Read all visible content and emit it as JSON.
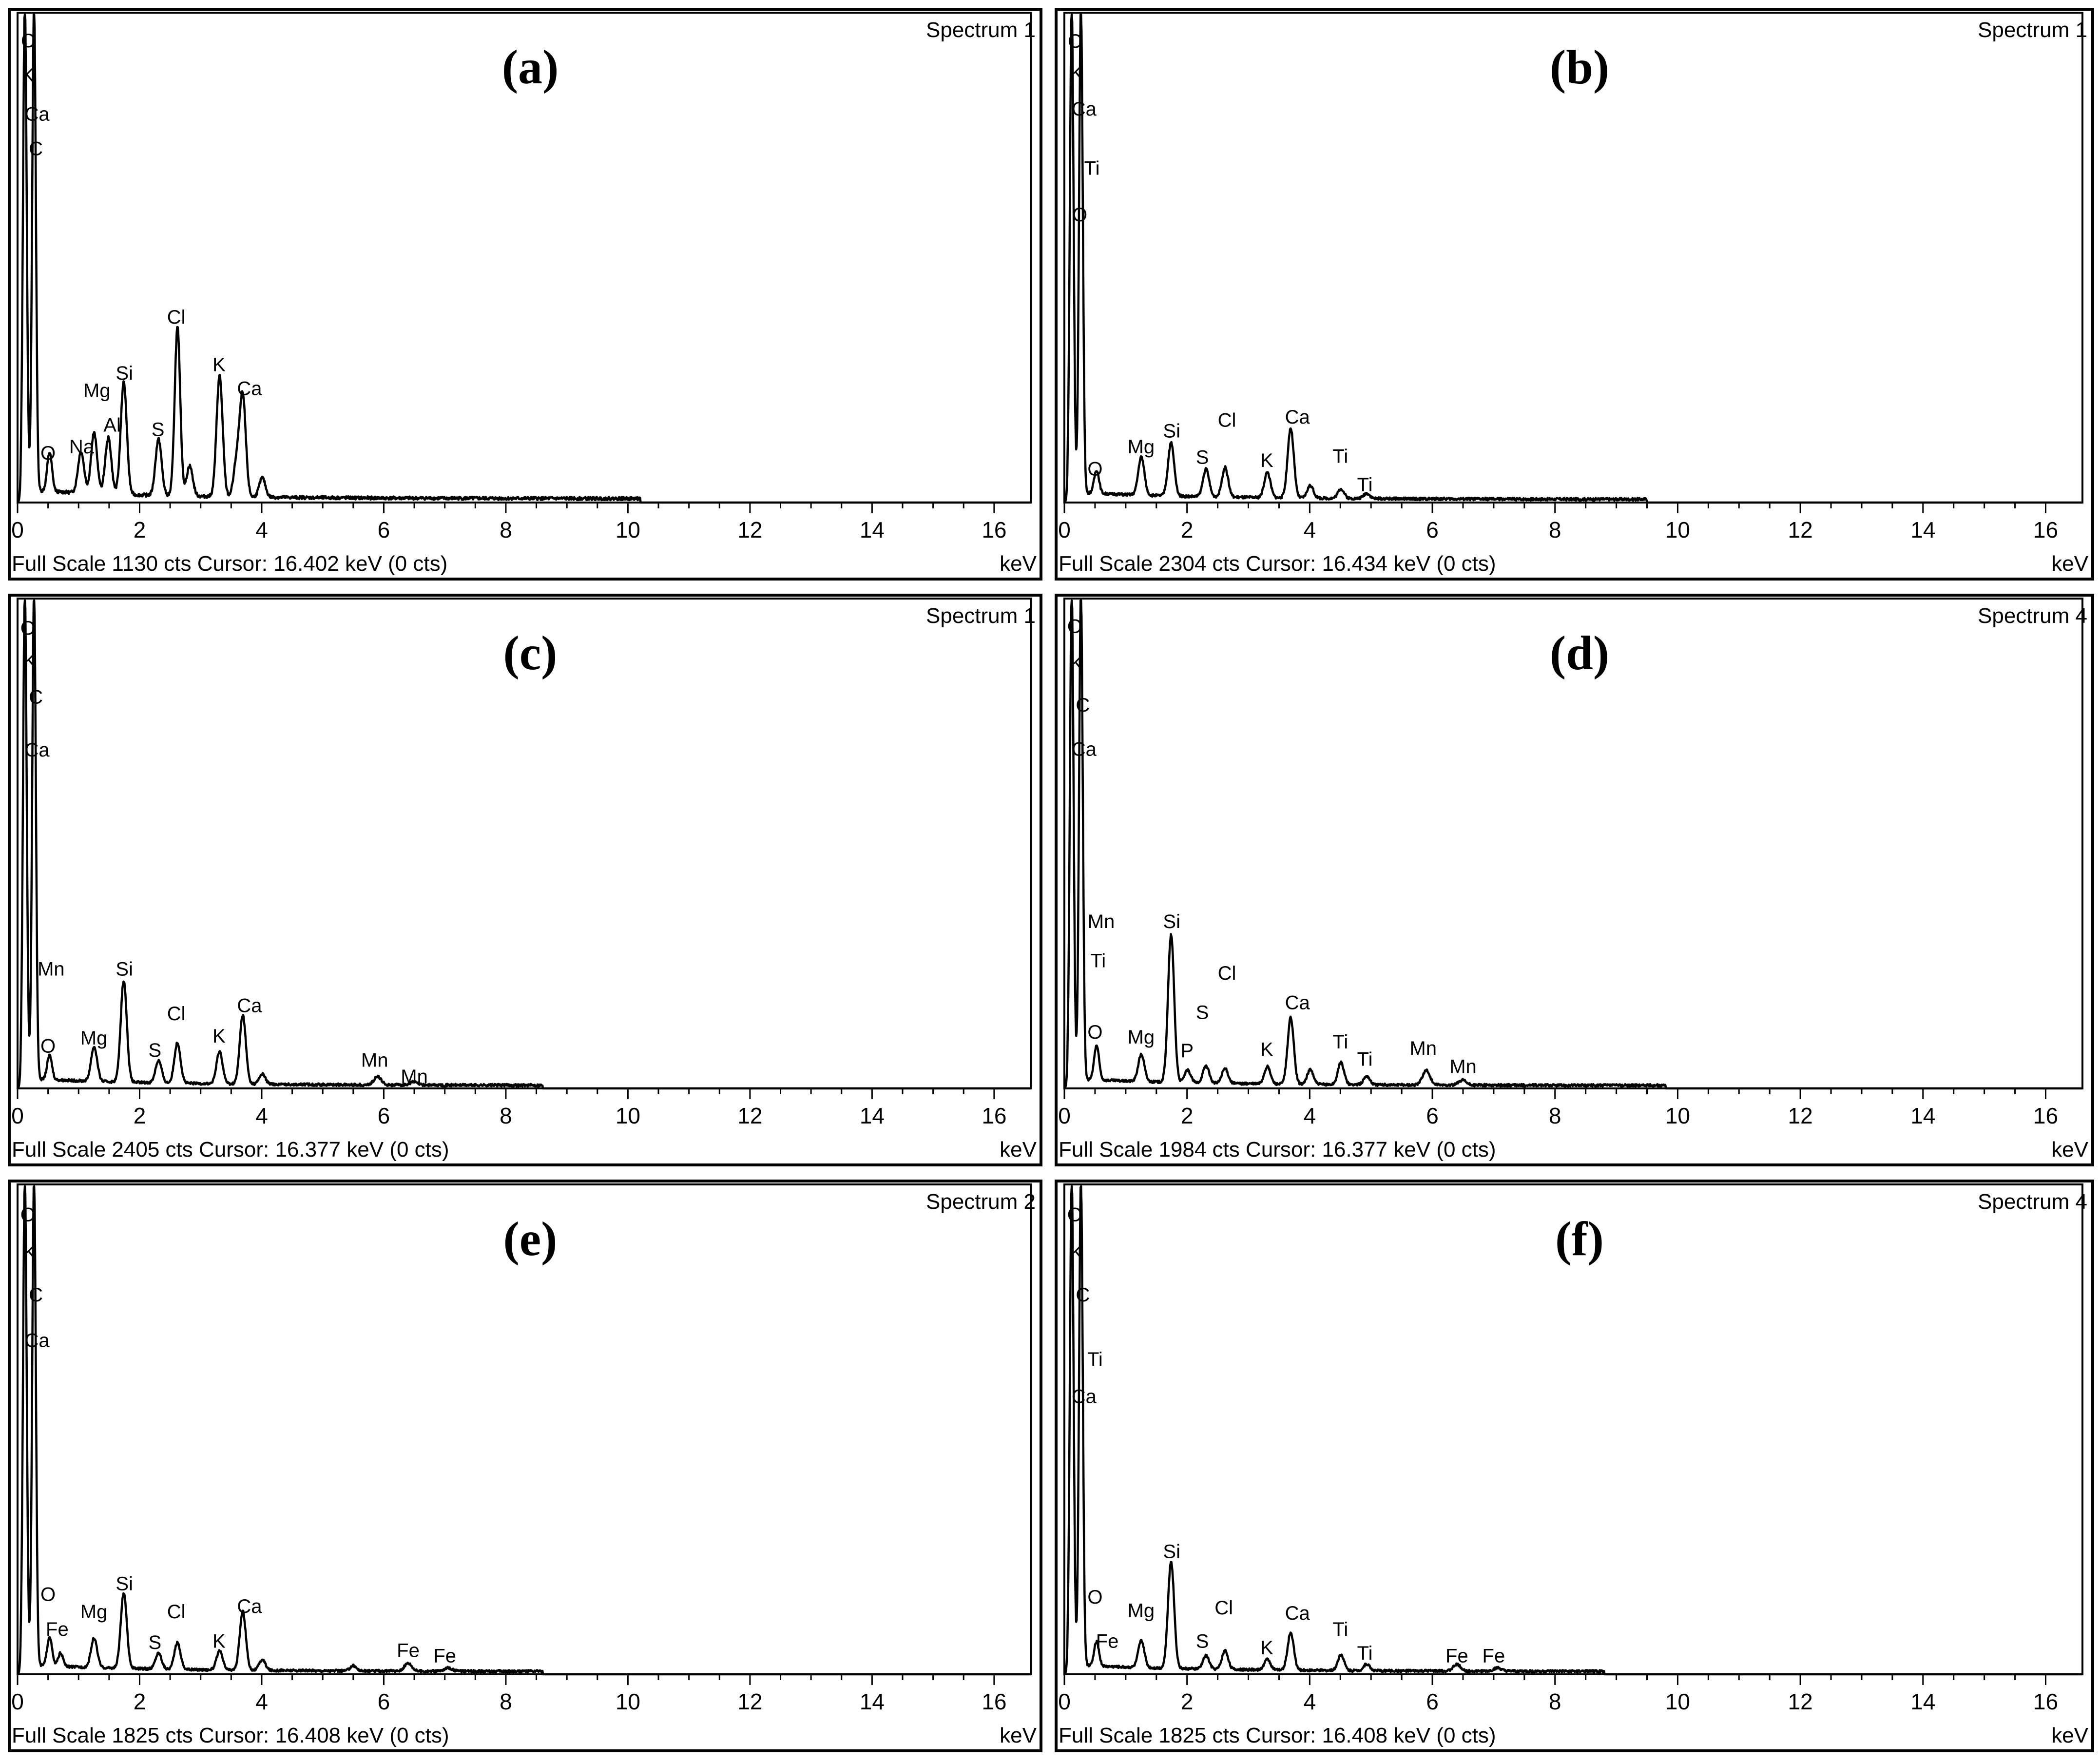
{
  "chart_data": [
    {
      "type": "line",
      "panel_label": "(a)",
      "spectrum_name": "Spectrum 1",
      "xlabel": "keV",
      "xlim": [
        0,
        16.6
      ],
      "xticks": [
        "0",
        "2",
        "4",
        "6",
        "8",
        "10",
        "12",
        "14",
        "16"
      ],
      "full_scale": "Full Scale 1130 cts",
      "cursor": "Cursor: 16.402 keV (0 cts)",
      "ymax": 1130,
      "baseline": 15,
      "noise_until": 10.2,
      "peaks": [
        {
          "x": 0.12,
          "y": 1130,
          "w": 0.03
        },
        {
          "x": 0.27,
          "y": 1130,
          "w": 0.03
        },
        {
          "x": 0.525,
          "y": 90,
          "w": 0.04
        },
        {
          "x": 1.04,
          "y": 95,
          "w": 0.05
        },
        {
          "x": 1.254,
          "y": 140,
          "w": 0.05
        },
        {
          "x": 1.487,
          "y": 130,
          "w": 0.05
        },
        {
          "x": 1.74,
          "y": 260,
          "w": 0.05
        },
        {
          "x": 2.31,
          "y": 130,
          "w": 0.05
        },
        {
          "x": 2.62,
          "y": 390,
          "w": 0.045
        },
        {
          "x": 2.82,
          "y": 70,
          "w": 0.05
        },
        {
          "x": 3.31,
          "y": 280,
          "w": 0.05
        },
        {
          "x": 3.59,
          "y": 80,
          "w": 0.05
        },
        {
          "x": 3.69,
          "y": 230,
          "w": 0.05
        },
        {
          "x": 4.01,
          "y": 45,
          "w": 0.05
        }
      ],
      "labels": [
        {
          "text": "C",
          "x": 0.17,
          "y": 1070
        },
        {
          "text": "K",
          "x": 0.17,
          "y": 990
        },
        {
          "text": "Ca",
          "x": 0.32,
          "y": 900
        },
        {
          "text": "C",
          "x": 0.3,
          "y": 820
        },
        {
          "text": "O",
          "x": 0.5,
          "y": 115
        },
        {
          "text": "Na",
          "x": 1.05,
          "y": 130
        },
        {
          "text": "Al",
          "x": 1.55,
          "y": 180
        },
        {
          "text": "Mg",
          "x": 1.3,
          "y": 260
        },
        {
          "text": "Si",
          "x": 1.75,
          "y": 300
        },
        {
          "text": "S",
          "x": 2.3,
          "y": 170
        },
        {
          "text": "Cl",
          "x": 2.6,
          "y": 430
        },
        {
          "text": "K",
          "x": 3.3,
          "y": 320
        },
        {
          "text": "Ca",
          "x": 3.8,
          "y": 265
        }
      ]
    },
    {
      "type": "line",
      "panel_label": "(b)",
      "spectrum_name": "Spectrum 1",
      "xlabel": "keV",
      "xlim": [
        0,
        16.6
      ],
      "xticks": [
        "0",
        "2",
        "4",
        "6",
        "8",
        "10",
        "12",
        "14",
        "16"
      ],
      "full_scale": "Full Scale 2304 cts",
      "cursor": "Cursor: 16.434 keV (0 cts)",
      "ymax": 2304,
      "baseline": 25,
      "noise_until": 9.5,
      "peaks": [
        {
          "x": 0.12,
          "y": 2304,
          "w": 0.03
        },
        {
          "x": 0.27,
          "y": 2304,
          "w": 0.03
        },
        {
          "x": 0.525,
          "y": 110,
          "w": 0.04
        },
        {
          "x": 1.254,
          "y": 180,
          "w": 0.05
        },
        {
          "x": 1.74,
          "y": 250,
          "w": 0.05
        },
        {
          "x": 2.31,
          "y": 130,
          "w": 0.05
        },
        {
          "x": 2.62,
          "y": 140,
          "w": 0.05
        },
        {
          "x": 3.31,
          "y": 120,
          "w": 0.05
        },
        {
          "x": 3.69,
          "y": 330,
          "w": 0.05
        },
        {
          "x": 4.01,
          "y": 60,
          "w": 0.05
        },
        {
          "x": 4.51,
          "y": 45,
          "w": 0.05
        },
        {
          "x": 4.93,
          "y": 25,
          "w": 0.05
        }
      ],
      "labels": [
        {
          "text": "C",
          "x": 0.17,
          "y": 2180
        },
        {
          "text": "K",
          "x": 0.2,
          "y": 2030
        },
        {
          "text": "Ca",
          "x": 0.32,
          "y": 1860
        },
        {
          "text": "Ti",
          "x": 0.45,
          "y": 1580
        },
        {
          "text": "O",
          "x": 0.25,
          "y": 1360
        },
        {
          "text": "O",
          "x": 0.5,
          "y": 160
        },
        {
          "text": "Mg",
          "x": 1.25,
          "y": 265
        },
        {
          "text": "Si",
          "x": 1.75,
          "y": 340
        },
        {
          "text": "S",
          "x": 2.25,
          "y": 215
        },
        {
          "text": "Cl",
          "x": 2.65,
          "y": 390
        },
        {
          "text": "K",
          "x": 3.3,
          "y": 200
        },
        {
          "text": "Ca",
          "x": 3.8,
          "y": 405
        },
        {
          "text": "Ti",
          "x": 4.5,
          "y": 220
        },
        {
          "text": "Ti",
          "x": 4.9,
          "y": 85
        }
      ]
    },
    {
      "type": "line",
      "panel_label": "(c)",
      "spectrum_name": "Spectrum 1",
      "xlabel": "keV",
      "xlim": [
        0,
        16.6
      ],
      "xticks": [
        "0",
        "2",
        "4",
        "6",
        "8",
        "10",
        "12",
        "14",
        "16"
      ],
      "full_scale": "Full Scale 2405 cts",
      "cursor": "Cursor: 16.377 keV (0 cts)",
      "ymax": 2405,
      "baseline": 25,
      "noise_until": 8.6,
      "peaks": [
        {
          "x": 0.12,
          "y": 2405,
          "w": 0.03
        },
        {
          "x": 0.27,
          "y": 2405,
          "w": 0.03
        },
        {
          "x": 0.525,
          "y": 120,
          "w": 0.04
        },
        {
          "x": 1.254,
          "y": 170,
          "w": 0.05
        },
        {
          "x": 1.74,
          "y": 500,
          "w": 0.05
        },
        {
          "x": 2.31,
          "y": 110,
          "w": 0.05
        },
        {
          "x": 2.62,
          "y": 200,
          "w": 0.05
        },
        {
          "x": 3.31,
          "y": 160,
          "w": 0.05
        },
        {
          "x": 3.69,
          "y": 340,
          "w": 0.05
        },
        {
          "x": 4.01,
          "y": 50,
          "w": 0.05
        },
        {
          "x": 5.9,
          "y": 40,
          "w": 0.06
        },
        {
          "x": 6.49,
          "y": 15,
          "w": 0.06
        }
      ],
      "labels": [
        {
          "text": "O",
          "x": 0.17,
          "y": 2270
        },
        {
          "text": "K",
          "x": 0.2,
          "y": 2110
        },
        {
          "text": "C",
          "x": 0.3,
          "y": 1930
        },
        {
          "text": "Ca",
          "x": 0.32,
          "y": 1670
        },
        {
          "text": "Mn",
          "x": 0.55,
          "y": 590
        },
        {
          "text": "O",
          "x": 0.5,
          "y": 210
        },
        {
          "text": "Mg",
          "x": 1.25,
          "y": 250
        },
        {
          "text": "Si",
          "x": 1.75,
          "y": 590
        },
        {
          "text": "S",
          "x": 2.25,
          "y": 190
        },
        {
          "text": "Cl",
          "x": 2.6,
          "y": 370
        },
        {
          "text": "K",
          "x": 3.3,
          "y": 260
        },
        {
          "text": "Ca",
          "x": 3.8,
          "y": 410
        },
        {
          "text": "Mn",
          "x": 5.85,
          "y": 140
        },
        {
          "text": "Mn",
          "x": 6.5,
          "y": 60
        }
      ]
    },
    {
      "type": "line",
      "panel_label": "(d)",
      "spectrum_name": "Spectrum 4",
      "xlabel": "keV",
      "xlim": [
        0,
        16.6
      ],
      "xticks": [
        "0",
        "2",
        "4",
        "6",
        "8",
        "10",
        "12",
        "14",
        "16"
      ],
      "full_scale": "Full Scale 1984 cts",
      "cursor": "Cursor: 16.377 keV (0 cts)",
      "ymax": 1984,
      "baseline": 20,
      "noise_until": 9.8,
      "peaks": [
        {
          "x": 0.12,
          "y": 1984,
          "w": 0.03
        },
        {
          "x": 0.27,
          "y": 1984,
          "w": 0.03
        },
        {
          "x": 0.525,
          "y": 140,
          "w": 0.04
        },
        {
          "x": 1.254,
          "y": 110,
          "w": 0.05
        },
        {
          "x": 1.74,
          "y": 600,
          "w": 0.05
        },
        {
          "x": 2.01,
          "y": 50,
          "w": 0.05
        },
        {
          "x": 2.31,
          "y": 70,
          "w": 0.05
        },
        {
          "x": 2.62,
          "y": 60,
          "w": 0.05
        },
        {
          "x": 3.31,
          "y": 70,
          "w": 0.05
        },
        {
          "x": 3.69,
          "y": 270,
          "w": 0.05
        },
        {
          "x": 4.01,
          "y": 60,
          "w": 0.05
        },
        {
          "x": 4.51,
          "y": 90,
          "w": 0.05
        },
        {
          "x": 4.93,
          "y": 35,
          "w": 0.05
        },
        {
          "x": 5.9,
          "y": 60,
          "w": 0.06
        },
        {
          "x": 6.49,
          "y": 20,
          "w": 0.06
        }
      ],
      "labels": [
        {
          "text": "O",
          "x": 0.17,
          "y": 1880
        },
        {
          "text": "K",
          "x": 0.2,
          "y": 1730
        },
        {
          "text": "C",
          "x": 0.3,
          "y": 1560
        },
        {
          "text": "Ca",
          "x": 0.32,
          "y": 1380
        },
        {
          "text": "Mn",
          "x": 0.6,
          "y": 680
        },
        {
          "text": "Ti",
          "x": 0.55,
          "y": 520
        },
        {
          "text": "O",
          "x": 0.5,
          "y": 230
        },
        {
          "text": "Mg",
          "x": 1.25,
          "y": 210
        },
        {
          "text": "Si",
          "x": 1.75,
          "y": 680
        },
        {
          "text": "P",
          "x": 2.0,
          "y": 155
        },
        {
          "text": "S",
          "x": 2.25,
          "y": 310
        },
        {
          "text": "Cl",
          "x": 2.65,
          "y": 470
        },
        {
          "text": "K",
          "x": 3.3,
          "y": 160
        },
        {
          "text": "Ca",
          "x": 3.8,
          "y": 350
        },
        {
          "text": "Ti",
          "x": 4.5,
          "y": 190
        },
        {
          "text": "Ti",
          "x": 4.9,
          "y": 120
        },
        {
          "text": "Mn",
          "x": 5.85,
          "y": 165
        },
        {
          "text": "Mn",
          "x": 6.5,
          "y": 90
        }
      ]
    },
    {
      "type": "line",
      "panel_label": "(e)",
      "spectrum_name": "Spectrum 2",
      "xlabel": "keV",
      "xlim": [
        0,
        16.6
      ],
      "xticks": [
        "0",
        "2",
        "4",
        "6",
        "8",
        "10",
        "12",
        "14",
        "16"
      ],
      "full_scale": "Full Scale 1825 cts",
      "cursor": "Cursor: 16.408 keV (0 cts)",
      "ymax": 1825,
      "baseline": 18,
      "noise_until": 8.6,
      "peaks": [
        {
          "x": 0.12,
          "y": 1825,
          "w": 0.03
        },
        {
          "x": 0.27,
          "y": 1825,
          "w": 0.03
        },
        {
          "x": 0.525,
          "y": 110,
          "w": 0.04
        },
        {
          "x": 0.705,
          "y": 50,
          "w": 0.04
        },
        {
          "x": 1.254,
          "y": 110,
          "w": 0.05
        },
        {
          "x": 1.74,
          "y": 280,
          "w": 0.05
        },
        {
          "x": 2.31,
          "y": 60,
          "w": 0.05
        },
        {
          "x": 2.62,
          "y": 100,
          "w": 0.05
        },
        {
          "x": 3.31,
          "y": 70,
          "w": 0.05
        },
        {
          "x": 3.69,
          "y": 220,
          "w": 0.05
        },
        {
          "x": 4.01,
          "y": 40,
          "w": 0.05
        },
        {
          "x": 5.5,
          "y": 20,
          "w": 0.05
        },
        {
          "x": 6.4,
          "y": 30,
          "w": 0.06
        },
        {
          "x": 7.06,
          "y": 12,
          "w": 0.06
        }
      ],
      "labels": [
        {
          "text": "O",
          "x": 0.17,
          "y": 1720
        },
        {
          "text": "K",
          "x": 0.2,
          "y": 1580
        },
        {
          "text": "C",
          "x": 0.3,
          "y": 1420
        },
        {
          "text": "Ca",
          "x": 0.32,
          "y": 1250
        },
        {
          "text": "O",
          "x": 0.5,
          "y": 300
        },
        {
          "text": "Fe",
          "x": 0.65,
          "y": 170
        },
        {
          "text": "Mg",
          "x": 1.25,
          "y": 235
        },
        {
          "text": "Si",
          "x": 1.75,
          "y": 340
        },
        {
          "text": "S",
          "x": 2.25,
          "y": 120
        },
        {
          "text": "Cl",
          "x": 2.6,
          "y": 235
        },
        {
          "text": "K",
          "x": 3.3,
          "y": 125
        },
        {
          "text": "Ca",
          "x": 3.8,
          "y": 255
        },
        {
          "text": "Fe",
          "x": 6.4,
          "y": 90
        },
        {
          "text": "Fe",
          "x": 7.0,
          "y": 70
        }
      ]
    },
    {
      "type": "line",
      "panel_label": "(f)",
      "spectrum_name": "Spectrum 4",
      "xlabel": "keV",
      "xlim": [
        0,
        16.6
      ],
      "xticks": [
        "0",
        "2",
        "4",
        "6",
        "8",
        "10",
        "12",
        "14",
        "16"
      ],
      "full_scale": "Full Scale 1825 cts",
      "cursor": "Cursor: 16.408 keV (0 cts)",
      "ymax": 1825,
      "baseline": 18,
      "noise_until": 8.8,
      "peaks": [
        {
          "x": 0.12,
          "y": 1825,
          "w": 0.03
        },
        {
          "x": 0.27,
          "y": 1825,
          "w": 0.03
        },
        {
          "x": 0.525,
          "y": 90,
          "w": 0.04
        },
        {
          "x": 1.254,
          "y": 100,
          "w": 0.05
        },
        {
          "x": 1.74,
          "y": 400,
          "w": 0.05
        },
        {
          "x": 2.31,
          "y": 50,
          "w": 0.05
        },
        {
          "x": 2.62,
          "y": 70,
          "w": 0.05
        },
        {
          "x": 3.31,
          "y": 40,
          "w": 0.05
        },
        {
          "x": 3.69,
          "y": 140,
          "w": 0.05
        },
        {
          "x": 4.51,
          "y": 60,
          "w": 0.05
        },
        {
          "x": 4.93,
          "y": 25,
          "w": 0.05
        },
        {
          "x": 6.4,
          "y": 25,
          "w": 0.06
        },
        {
          "x": 7.06,
          "y": 12,
          "w": 0.06
        }
      ],
      "labels": [
        {
          "text": "O",
          "x": 0.17,
          "y": 1720
        },
        {
          "text": "K",
          "x": 0.2,
          "y": 1580
        },
        {
          "text": "C",
          "x": 0.3,
          "y": 1420
        },
        {
          "text": "Ti",
          "x": 0.5,
          "y": 1180
        },
        {
          "text": "Ca",
          "x": 0.32,
          "y": 1040
        },
        {
          "text": "O",
          "x": 0.5,
          "y": 290
        },
        {
          "text": "Fe",
          "x": 0.7,
          "y": 125
        },
        {
          "text": "Mg",
          "x": 1.25,
          "y": 240
        },
        {
          "text": "Si",
          "x": 1.75,
          "y": 460
        },
        {
          "text": "S",
          "x": 2.25,
          "y": 125
        },
        {
          "text": "Cl",
          "x": 2.6,
          "y": 250
        },
        {
          "text": "K",
          "x": 3.3,
          "y": 100
        },
        {
          "text": "Ca",
          "x": 3.8,
          "y": 230
        },
        {
          "text": "Ti",
          "x": 4.5,
          "y": 170
        },
        {
          "text": "Ti",
          "x": 4.9,
          "y": 80
        },
        {
          "text": "Fe",
          "x": 6.4,
          "y": 70
        },
        {
          "text": "Fe",
          "x": 7.0,
          "y": 70
        }
      ]
    }
  ]
}
